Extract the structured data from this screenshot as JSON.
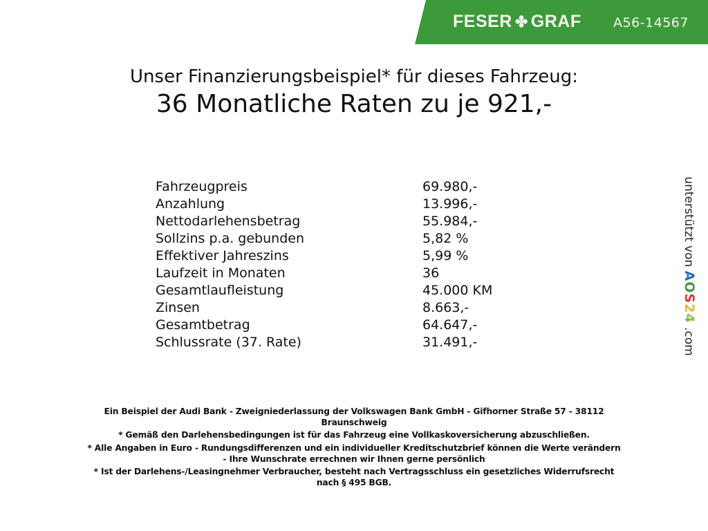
{
  "header": {
    "brand_left": "FESER",
    "brand_right": "GRAF",
    "brand_icon": "clover-icon",
    "vehicle_code": "A56-14567",
    "banner_color": "#3d9a3a"
  },
  "title": {
    "line1": "Unser Finanzierungsbeispiel* für dieses Fahrzeug:",
    "line2": "36 Monatliche Raten zu je 921,-"
  },
  "rows": [
    {
      "label": "Fahrzeugpreis",
      "value": "69.980,-"
    },
    {
      "label": "Anzahlung",
      "value": "13.996,-"
    },
    {
      "label": "Nettodarlehensbetrag",
      "value": "55.984,-"
    },
    {
      "label": "Sollzins p.a. gebunden",
      "value": "5,82 %"
    },
    {
      "label": "Effektiver Jahreszins",
      "value": "5,99 %"
    },
    {
      "label": "Laufzeit in Monaten",
      "value": "36"
    },
    {
      "label": "Gesamtlaufleistung",
      "value": "45.000 KM"
    },
    {
      "label": "Zinsen",
      "value": "8.663,-"
    },
    {
      "label": "Gesamtbetrag",
      "value": "64.647,-"
    },
    {
      "label": "Schlussrate (37. Rate)",
      "value": "31.491,-"
    }
  ],
  "side": {
    "text": "unterstützt von",
    "logo": "AOS24",
    "suffix": ".com"
  },
  "footer": {
    "lines": [
      "Ein Beispiel der Audi Bank - Zweigniederlassung der Volkswagen Bank GmbH - Gifhorner Straße 57 - 38112",
      "Braunschweig",
      "* Gemäß den Darlehensbedingungen ist für das Fahrzeug eine Vollkaskoversicherung abzuschließen.",
      "* Alle Angaben in Euro - Rundungsdifferenzen und ein individueller Kreditschutzbrief können die Werte verändern",
      "- Ihre Wunschrate errechnen wir Ihnen gerne persönlich",
      "* Ist der Darlehens-/Leasingnehmer Verbraucher, besteht nach Vertragsschluss ein gesetzliches Widerrufsrecht",
      "nach § 495 BGB."
    ]
  }
}
